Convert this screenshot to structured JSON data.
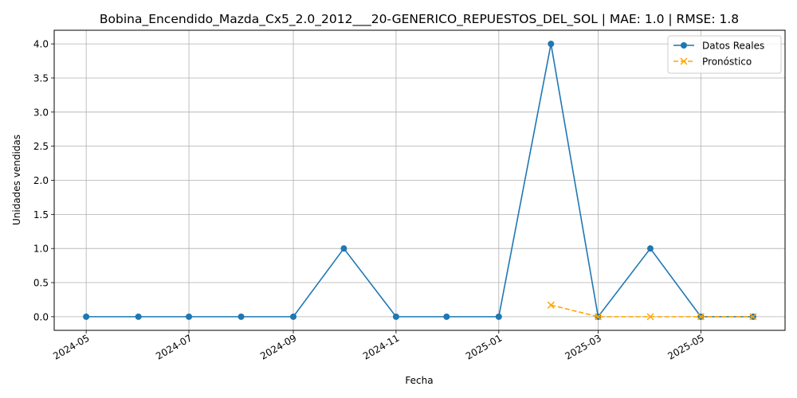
{
  "chart_data": {
    "type": "line",
    "title": "Bobina_Encendido_Mazda_Cx5_2.0_2012___20-GENERICO_REPUESTOS_DEL_SOL | MAE: 1.0 | RMSE: 1.8",
    "xlabel": "Fecha",
    "ylabel": "Unidades vendidas",
    "xlim": [
      "2024-04-12",
      "2025-06-20"
    ],
    "ylim": [
      -0.2,
      4.2
    ],
    "grid": true,
    "legend_position": "top-right",
    "x_ticks": [
      "2024-05",
      "2024-07",
      "2024-09",
      "2024-11",
      "2025-01",
      "2025-03",
      "2025-05"
    ],
    "y_ticks": [
      "0.0",
      "0.5",
      "1.0",
      "1.5",
      "2.0",
      "2.5",
      "3.0",
      "3.5",
      "4.0"
    ],
    "series": [
      {
        "name": "Datos Reales",
        "color": "#1f77b4",
        "line_style": "solid",
        "marker": "circle",
        "x": [
          "2024-05-01",
          "2024-06-01",
          "2024-07-01",
          "2024-08-01",
          "2024-09-01",
          "2024-10-01",
          "2024-11-01",
          "2024-12-01",
          "2025-01-01",
          "2025-02-01",
          "2025-03-01",
          "2025-04-01",
          "2025-05-01",
          "2025-06-01"
        ],
        "values": [
          0,
          0,
          0,
          0,
          0,
          1,
          0,
          0,
          0,
          4,
          0,
          1,
          0,
          0
        ]
      },
      {
        "name": "Pronóstico",
        "color": "#ffa500",
        "line_style": "dashed",
        "marker": "x",
        "x": [
          "2025-02-01",
          "2025-03-01",
          "2025-04-01",
          "2025-05-01",
          "2025-06-01"
        ],
        "values": [
          0.17,
          0,
          0,
          0,
          0
        ]
      }
    ]
  }
}
